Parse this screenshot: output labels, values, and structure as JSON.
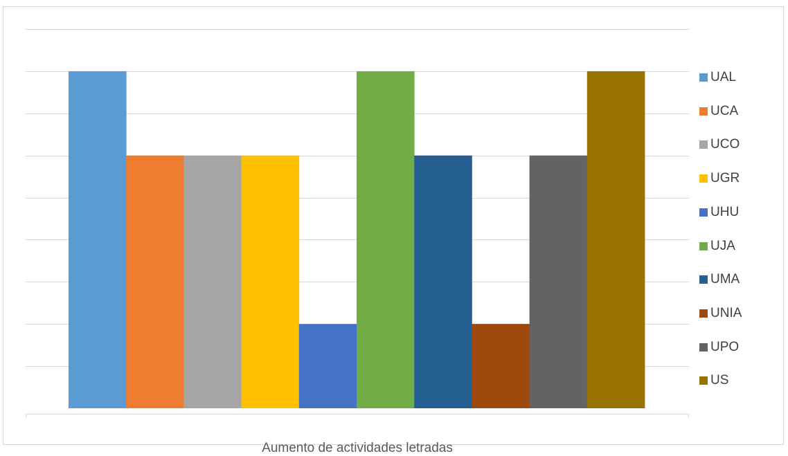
{
  "chart_data": {
    "type": "bar",
    "categories": [
      "Aumento de actividades letradas"
    ],
    "series": [
      {
        "name": "UAL",
        "values": [
          8
        ],
        "color": "#5b9bd5"
      },
      {
        "name": "UCA",
        "values": [
          6
        ],
        "color": "#ed7d31"
      },
      {
        "name": "UCO",
        "values": [
          6
        ],
        "color": "#a5a5a5"
      },
      {
        "name": "UGR",
        "values": [
          6
        ],
        "color": "#ffc000"
      },
      {
        "name": "UHU",
        "values": [
          2
        ],
        "color": "#4472c4"
      },
      {
        "name": "UJA",
        "values": [
          8
        ],
        "color": "#70ad47"
      },
      {
        "name": "UMA",
        "values": [
          6
        ],
        "color": "#255e91"
      },
      {
        "name": "UNIA",
        "values": [
          2
        ],
        "color": "#9e480e"
      },
      {
        "name": "UPO",
        "values": [
          6
        ],
        "color": "#636363"
      },
      {
        "name": "US",
        "values": [
          8
        ],
        "color": "#997300"
      }
    ],
    "ylim": [
      0,
      9
    ],
    "grid": true,
    "legend_position": "right",
    "gridline_color": "#d9d9d9",
    "axis_color": "#d9d9d9"
  }
}
